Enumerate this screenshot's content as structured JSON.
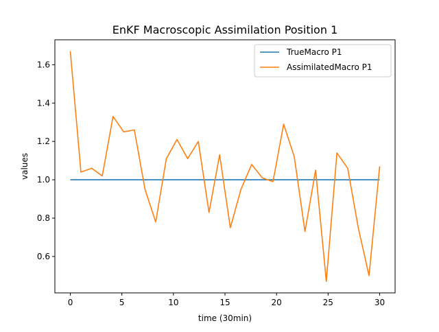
{
  "chart_data": {
    "type": "line",
    "title": "EnKF Macroscopic Assimilation Position 1",
    "xlabel": "time (30min)",
    "ylabel": "values",
    "xlim": [
      -1.5,
      31.5
    ],
    "ylim": [
      0.41,
      1.73
    ],
    "xticks": [
      0,
      5,
      10,
      15,
      20,
      25,
      30
    ],
    "xtick_labels": [
      "0",
      "5",
      "10",
      "15",
      "20",
      "25",
      "30"
    ],
    "yticks": [
      0.6,
      0.8,
      1.0,
      1.2,
      1.4,
      1.6
    ],
    "ytick_labels": [
      "0.6",
      "0.8",
      "1.0",
      "1.2",
      "1.4",
      "1.6"
    ],
    "grid": false,
    "legend_position": "top-right",
    "series": [
      {
        "name": "TrueMacro P1",
        "color": "#1f77b4",
        "x": [
          0,
          30
        ],
        "y": [
          1.0,
          1.0
        ]
      },
      {
        "name": "AssimilatedMacro P1",
        "color": "#ff7f0e",
        "x": [
          0,
          1.03,
          2.07,
          3.1,
          4.14,
          5.17,
          6.21,
          7.24,
          8.28,
          9.31,
          10.34,
          11.38,
          12.41,
          13.45,
          14.48,
          15.52,
          16.55,
          17.59,
          18.62,
          19.66,
          20.69,
          21.72,
          22.76,
          23.79,
          24.83,
          25.86,
          26.9,
          27.93,
          28.97,
          30.0
        ],
        "y": [
          1.67,
          1.04,
          1.06,
          1.02,
          1.33,
          1.25,
          1.26,
          0.95,
          0.78,
          1.11,
          1.21,
          1.11,
          1.2,
          0.83,
          1.13,
          0.75,
          0.95,
          1.08,
          1.01,
          0.99,
          1.29,
          1.12,
          0.73,
          1.05,
          0.47,
          1.14,
          1.06,
          0.75,
          0.5,
          1.07
        ]
      }
    ]
  }
}
